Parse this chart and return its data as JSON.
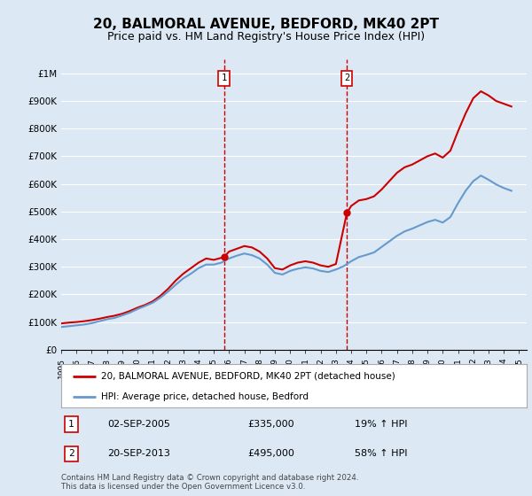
{
  "title": "20, BALMORAL AVENUE, BEDFORD, MK40 2PT",
  "subtitle": "Price paid vs. HM Land Registry's House Price Index (HPI)",
  "title_fontsize": 11,
  "subtitle_fontsize": 9,
  "background_color": "#dce9f5",
  "plot_bg_color": "#dce9f5",
  "ylabel_values": [
    "£0",
    "£100K",
    "£200K",
    "£300K",
    "£400K",
    "£500K",
    "£600K",
    "£700K",
    "£800K",
    "£900K",
    "£1M"
  ],
  "ylim": [
    0,
    1050000
  ],
  "xlim_start": 1995.0,
  "xlim_end": 2025.5,
  "red_line_color": "#cc0000",
  "blue_line_color": "#6699cc",
  "grid_color": "#ffffff",
  "sale1_x": 2005.67,
  "sale1_y": 335000,
  "sale1_label": "1",
  "sale1_date": "02-SEP-2005",
  "sale1_price": "£335,000",
  "sale1_hpi": "19% ↑ HPI",
  "sale2_x": 2013.72,
  "sale2_y": 495000,
  "sale2_label": "2",
  "sale2_date": "20-SEP-2013",
  "sale2_price": "£495,000",
  "sale2_hpi": "58% ↑ HPI",
  "legend_line1": "20, BALMORAL AVENUE, BEDFORD, MK40 2PT (detached house)",
  "legend_line2": "HPI: Average price, detached house, Bedford",
  "footer": "Contains HM Land Registry data © Crown copyright and database right 2024.\nThis data is licensed under the Open Government Licence v3.0.",
  "red_data_x": [
    1995.0,
    1995.5,
    1996.0,
    1996.5,
    1997.0,
    1997.5,
    1998.0,
    1998.5,
    1999.0,
    1999.5,
    2000.0,
    2000.5,
    2001.0,
    2001.5,
    2002.0,
    2002.5,
    2003.0,
    2003.5,
    2004.0,
    2004.5,
    2005.0,
    2005.67,
    2006.0,
    2006.5,
    2007.0,
    2007.5,
    2008.0,
    2008.5,
    2009.0,
    2009.5,
    2010.0,
    2010.5,
    2011.0,
    2011.5,
    2012.0,
    2012.5,
    2013.0,
    2013.72,
    2014.0,
    2014.5,
    2015.0,
    2015.5,
    2016.0,
    2016.5,
    2017.0,
    2017.5,
    2018.0,
    2018.5,
    2019.0,
    2019.5,
    2020.0,
    2020.5,
    2021.0,
    2021.5,
    2022.0,
    2022.5,
    2023.0,
    2023.5,
    2024.0,
    2024.5
  ],
  "red_data_y": [
    95000,
    98000,
    100000,
    103000,
    107000,
    112000,
    118000,
    123000,
    130000,
    140000,
    152000,
    162000,
    175000,
    195000,
    220000,
    250000,
    275000,
    295000,
    315000,
    330000,
    325000,
    335000,
    355000,
    365000,
    375000,
    370000,
    355000,
    330000,
    295000,
    290000,
    305000,
    315000,
    320000,
    315000,
    305000,
    300000,
    310000,
    495000,
    520000,
    540000,
    545000,
    555000,
    580000,
    610000,
    640000,
    660000,
    670000,
    685000,
    700000,
    710000,
    695000,
    720000,
    790000,
    855000,
    910000,
    935000,
    920000,
    900000,
    890000,
    880000
  ],
  "blue_data_x": [
    1995.0,
    1995.5,
    1996.0,
    1996.5,
    1997.0,
    1997.5,
    1998.0,
    1998.5,
    1999.0,
    1999.5,
    2000.0,
    2000.5,
    2001.0,
    2001.5,
    2002.0,
    2002.5,
    2003.0,
    2003.5,
    2004.0,
    2004.5,
    2005.0,
    2005.5,
    2006.0,
    2006.5,
    2007.0,
    2007.5,
    2008.0,
    2008.5,
    2009.0,
    2009.5,
    2010.0,
    2010.5,
    2011.0,
    2011.5,
    2012.0,
    2012.5,
    2013.0,
    2013.5,
    2014.0,
    2014.5,
    2015.0,
    2015.5,
    2016.0,
    2016.5,
    2017.0,
    2017.5,
    2018.0,
    2018.5,
    2019.0,
    2019.5,
    2020.0,
    2020.5,
    2021.0,
    2021.5,
    2022.0,
    2022.5,
    2023.0,
    2023.5,
    2024.0,
    2024.5
  ],
  "blue_data_y": [
    82000,
    85000,
    88000,
    91000,
    96000,
    103000,
    110000,
    115000,
    124000,
    134000,
    147000,
    158000,
    170000,
    188000,
    210000,
    235000,
    258000,
    275000,
    295000,
    308000,
    308000,
    315000,
    330000,
    340000,
    348000,
    342000,
    330000,
    308000,
    278000,
    272000,
    285000,
    293000,
    298000,
    294000,
    285000,
    281000,
    290000,
    302000,
    320000,
    335000,
    343000,
    352000,
    372000,
    392000,
    412000,
    428000,
    438000,
    450000,
    462000,
    470000,
    460000,
    480000,
    530000,
    575000,
    610000,
    630000,
    615000,
    598000,
    585000,
    575000
  ]
}
